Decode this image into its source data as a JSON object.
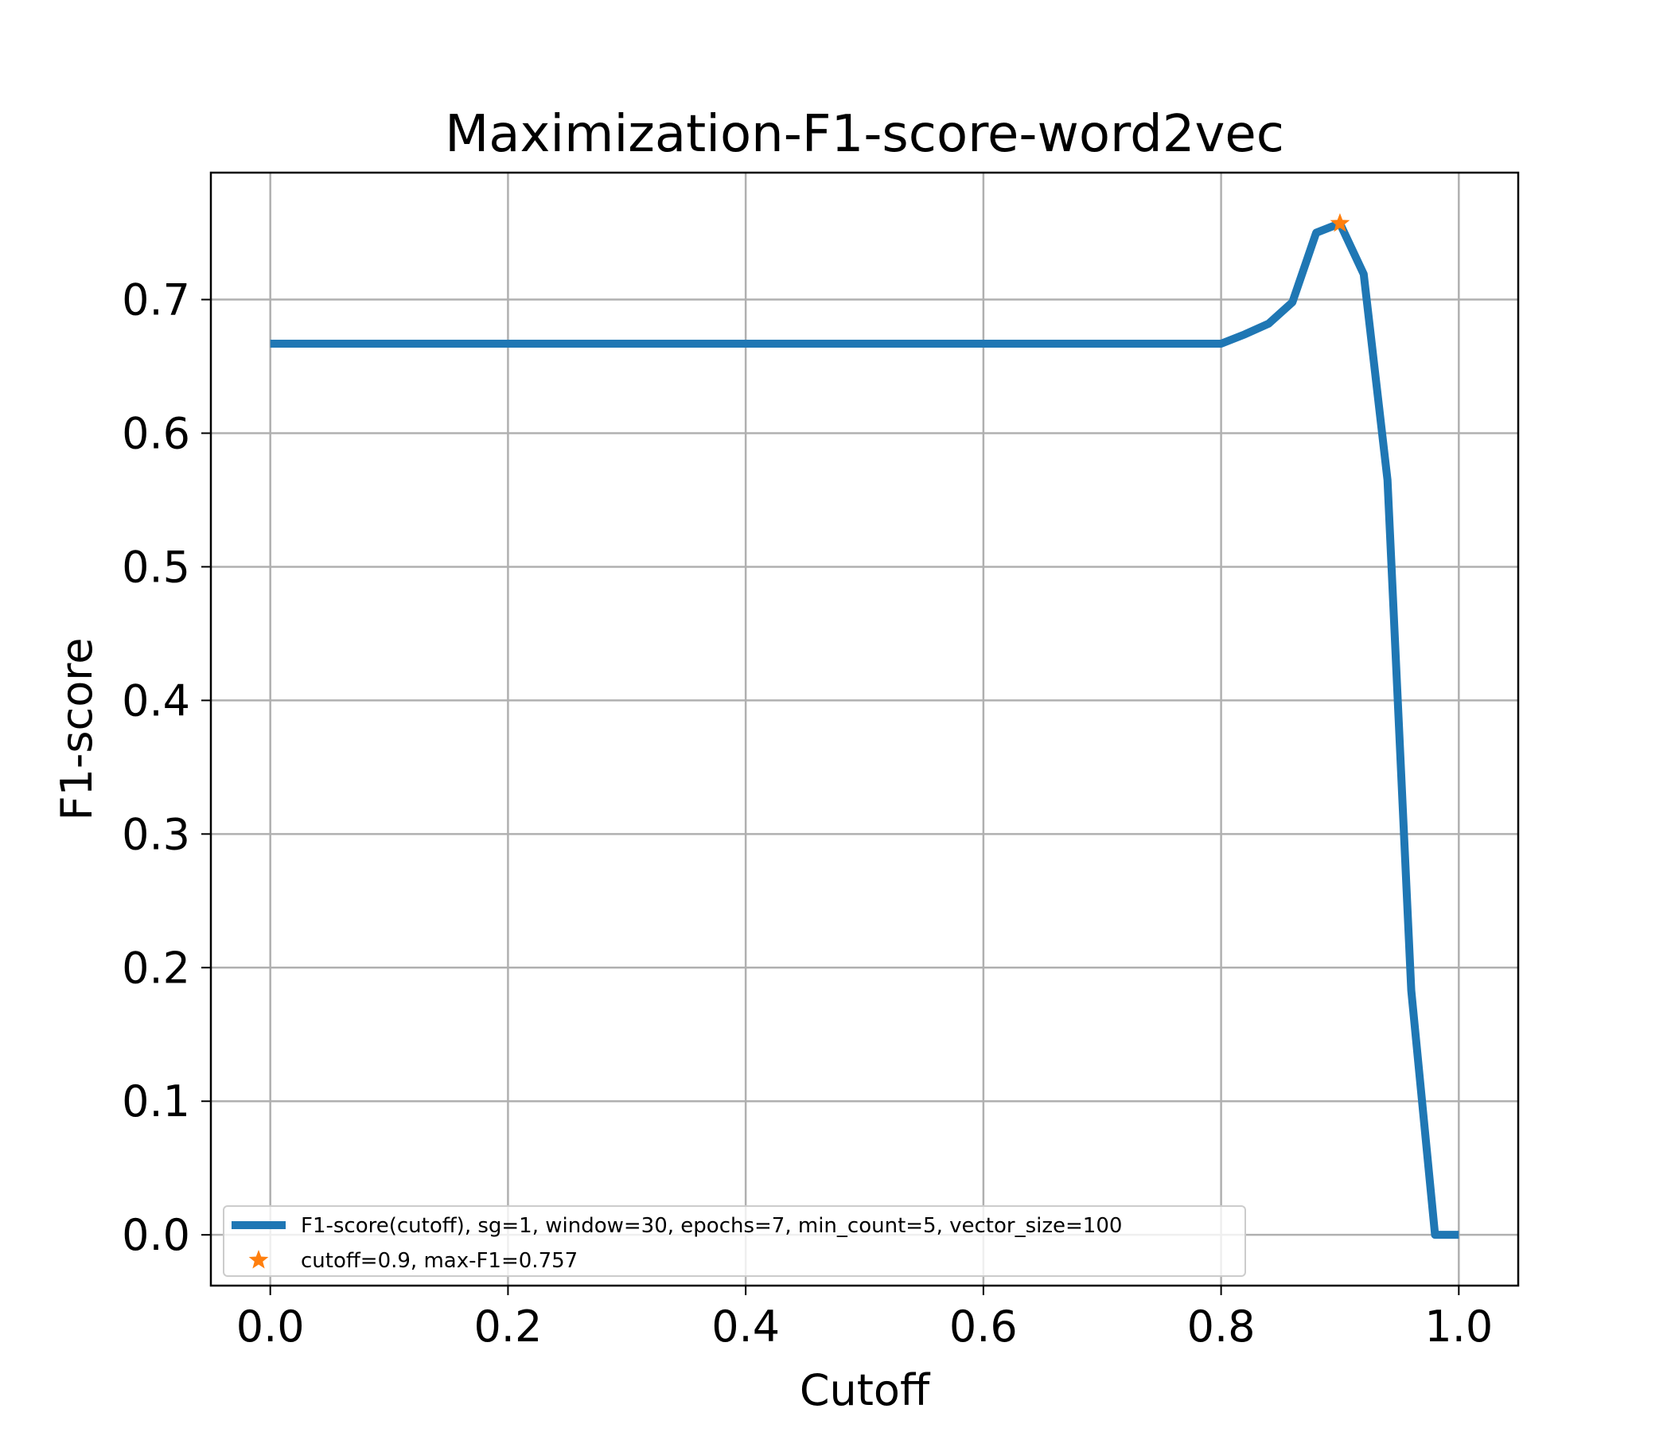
{
  "chart_data": {
    "type": "line",
    "title": "Maximization-F1-score-word2vec",
    "xlabel": "Cutoff",
    "ylabel": "F1-score",
    "xlim": [
      -0.05,
      1.05
    ],
    "ylim": [
      -0.038,
      0.795
    ],
    "xticks": [
      0.0,
      0.2,
      0.4,
      0.6,
      0.8,
      1.0
    ],
    "xtick_labels": [
      "0.0",
      "0.2",
      "0.4",
      "0.6",
      "0.8",
      "1.0"
    ],
    "yticks": [
      0.0,
      0.1,
      0.2,
      0.3,
      0.4,
      0.5,
      0.6,
      0.7
    ],
    "ytick_labels": [
      "0.0",
      "0.1",
      "0.2",
      "0.3",
      "0.4",
      "0.5",
      "0.6",
      "0.7"
    ],
    "grid": true,
    "legend_position": "lower-left",
    "series": [
      {
        "name": "F1-score(cutoff), sg=1, window=30, epochs=7, min_count=5, vector_size=100",
        "color": "#1f77b4",
        "style": "line",
        "x": [
          0.0,
          0.1,
          0.2,
          0.3,
          0.4,
          0.5,
          0.6,
          0.7,
          0.8,
          0.82,
          0.84,
          0.86,
          0.88,
          0.9,
          0.92,
          0.94,
          0.96,
          0.98,
          1.0
        ],
        "y": [
          0.667,
          0.667,
          0.667,
          0.667,
          0.667,
          0.667,
          0.667,
          0.667,
          0.667,
          0.674,
          0.682,
          0.698,
          0.75,
          0.757,
          0.719,
          0.565,
          0.183,
          0.0,
          0.0
        ]
      },
      {
        "name": "cutoff=0.9, max-F1=0.757",
        "color": "#ff7f0e",
        "style": "star",
        "x": [
          0.9
        ],
        "y": [
          0.757
        ]
      }
    ]
  }
}
